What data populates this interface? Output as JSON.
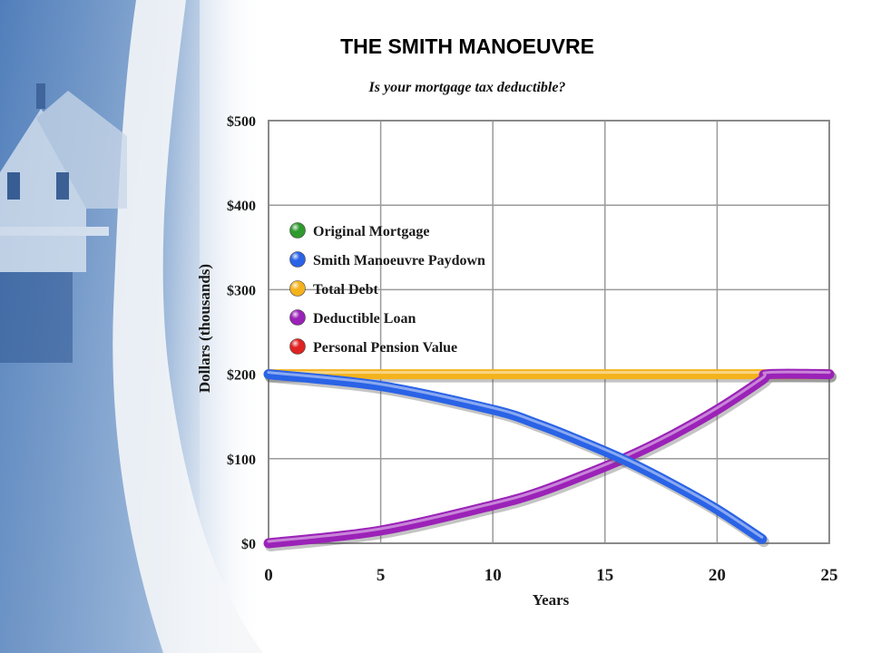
{
  "title": "THE SMITH MANOEUVRE",
  "subtitle": "Is your mortgage tax deductible?",
  "colors": {
    "background_blue": "#8fb0d4",
    "grid": "#9a9a9a",
    "original_mortgage": "#2e9a2e",
    "smith_paydown": "#2a63e6",
    "total_debt": "#f4b21c",
    "deductible_loan": "#9b22b8",
    "pension_value": "#e02222"
  },
  "chart_data": {
    "type": "line",
    "xlabel": "Years",
    "ylabel": "Dollars (thousands)",
    "xlim": [
      0,
      25
    ],
    "ylim": [
      0,
      500
    ],
    "x_ticks": [
      0,
      5,
      10,
      15,
      20,
      25
    ],
    "x_tick_labels": [
      "0",
      "5",
      "10",
      "15",
      "20",
      "25"
    ],
    "y_ticks": [
      0,
      100,
      200,
      300,
      400,
      500
    ],
    "y_tick_labels": [
      "$0",
      "$100",
      "$200",
      "$300",
      "$400",
      "$500"
    ],
    "grid": true,
    "legend_placement": "upper-left",
    "series": [
      {
        "name": "Original Mortgage",
        "color": "#2e9a2e",
        "x": [],
        "y": []
      },
      {
        "name": "Smith Manoeuvre Paydown",
        "color": "#2a63e6",
        "x": [
          0,
          5,
          10,
          12,
          14,
          16,
          18,
          20,
          22
        ],
        "y": [
          200,
          186,
          158,
          141,
          120,
          97,
          70,
          40,
          5
        ]
      },
      {
        "name": "Total Debt",
        "color": "#f4b21c",
        "x": [
          0,
          5,
          10,
          15,
          20,
          22.3,
          25
        ],
        "y": [
          200,
          200,
          200,
          200,
          200,
          200,
          200
        ]
      },
      {
        "name": "Deductible Loan",
        "color": "#9b22b8",
        "x": [
          0,
          5,
          10,
          12,
          14,
          16,
          18,
          20,
          22,
          22.3,
          25
        ],
        "y": [
          0,
          15,
          45,
          60,
          80,
          102,
          128,
          158,
          193,
          200,
          200
        ]
      },
      {
        "name": "Personal Pension Value",
        "color": "#e02222",
        "x": [],
        "y": []
      }
    ]
  }
}
